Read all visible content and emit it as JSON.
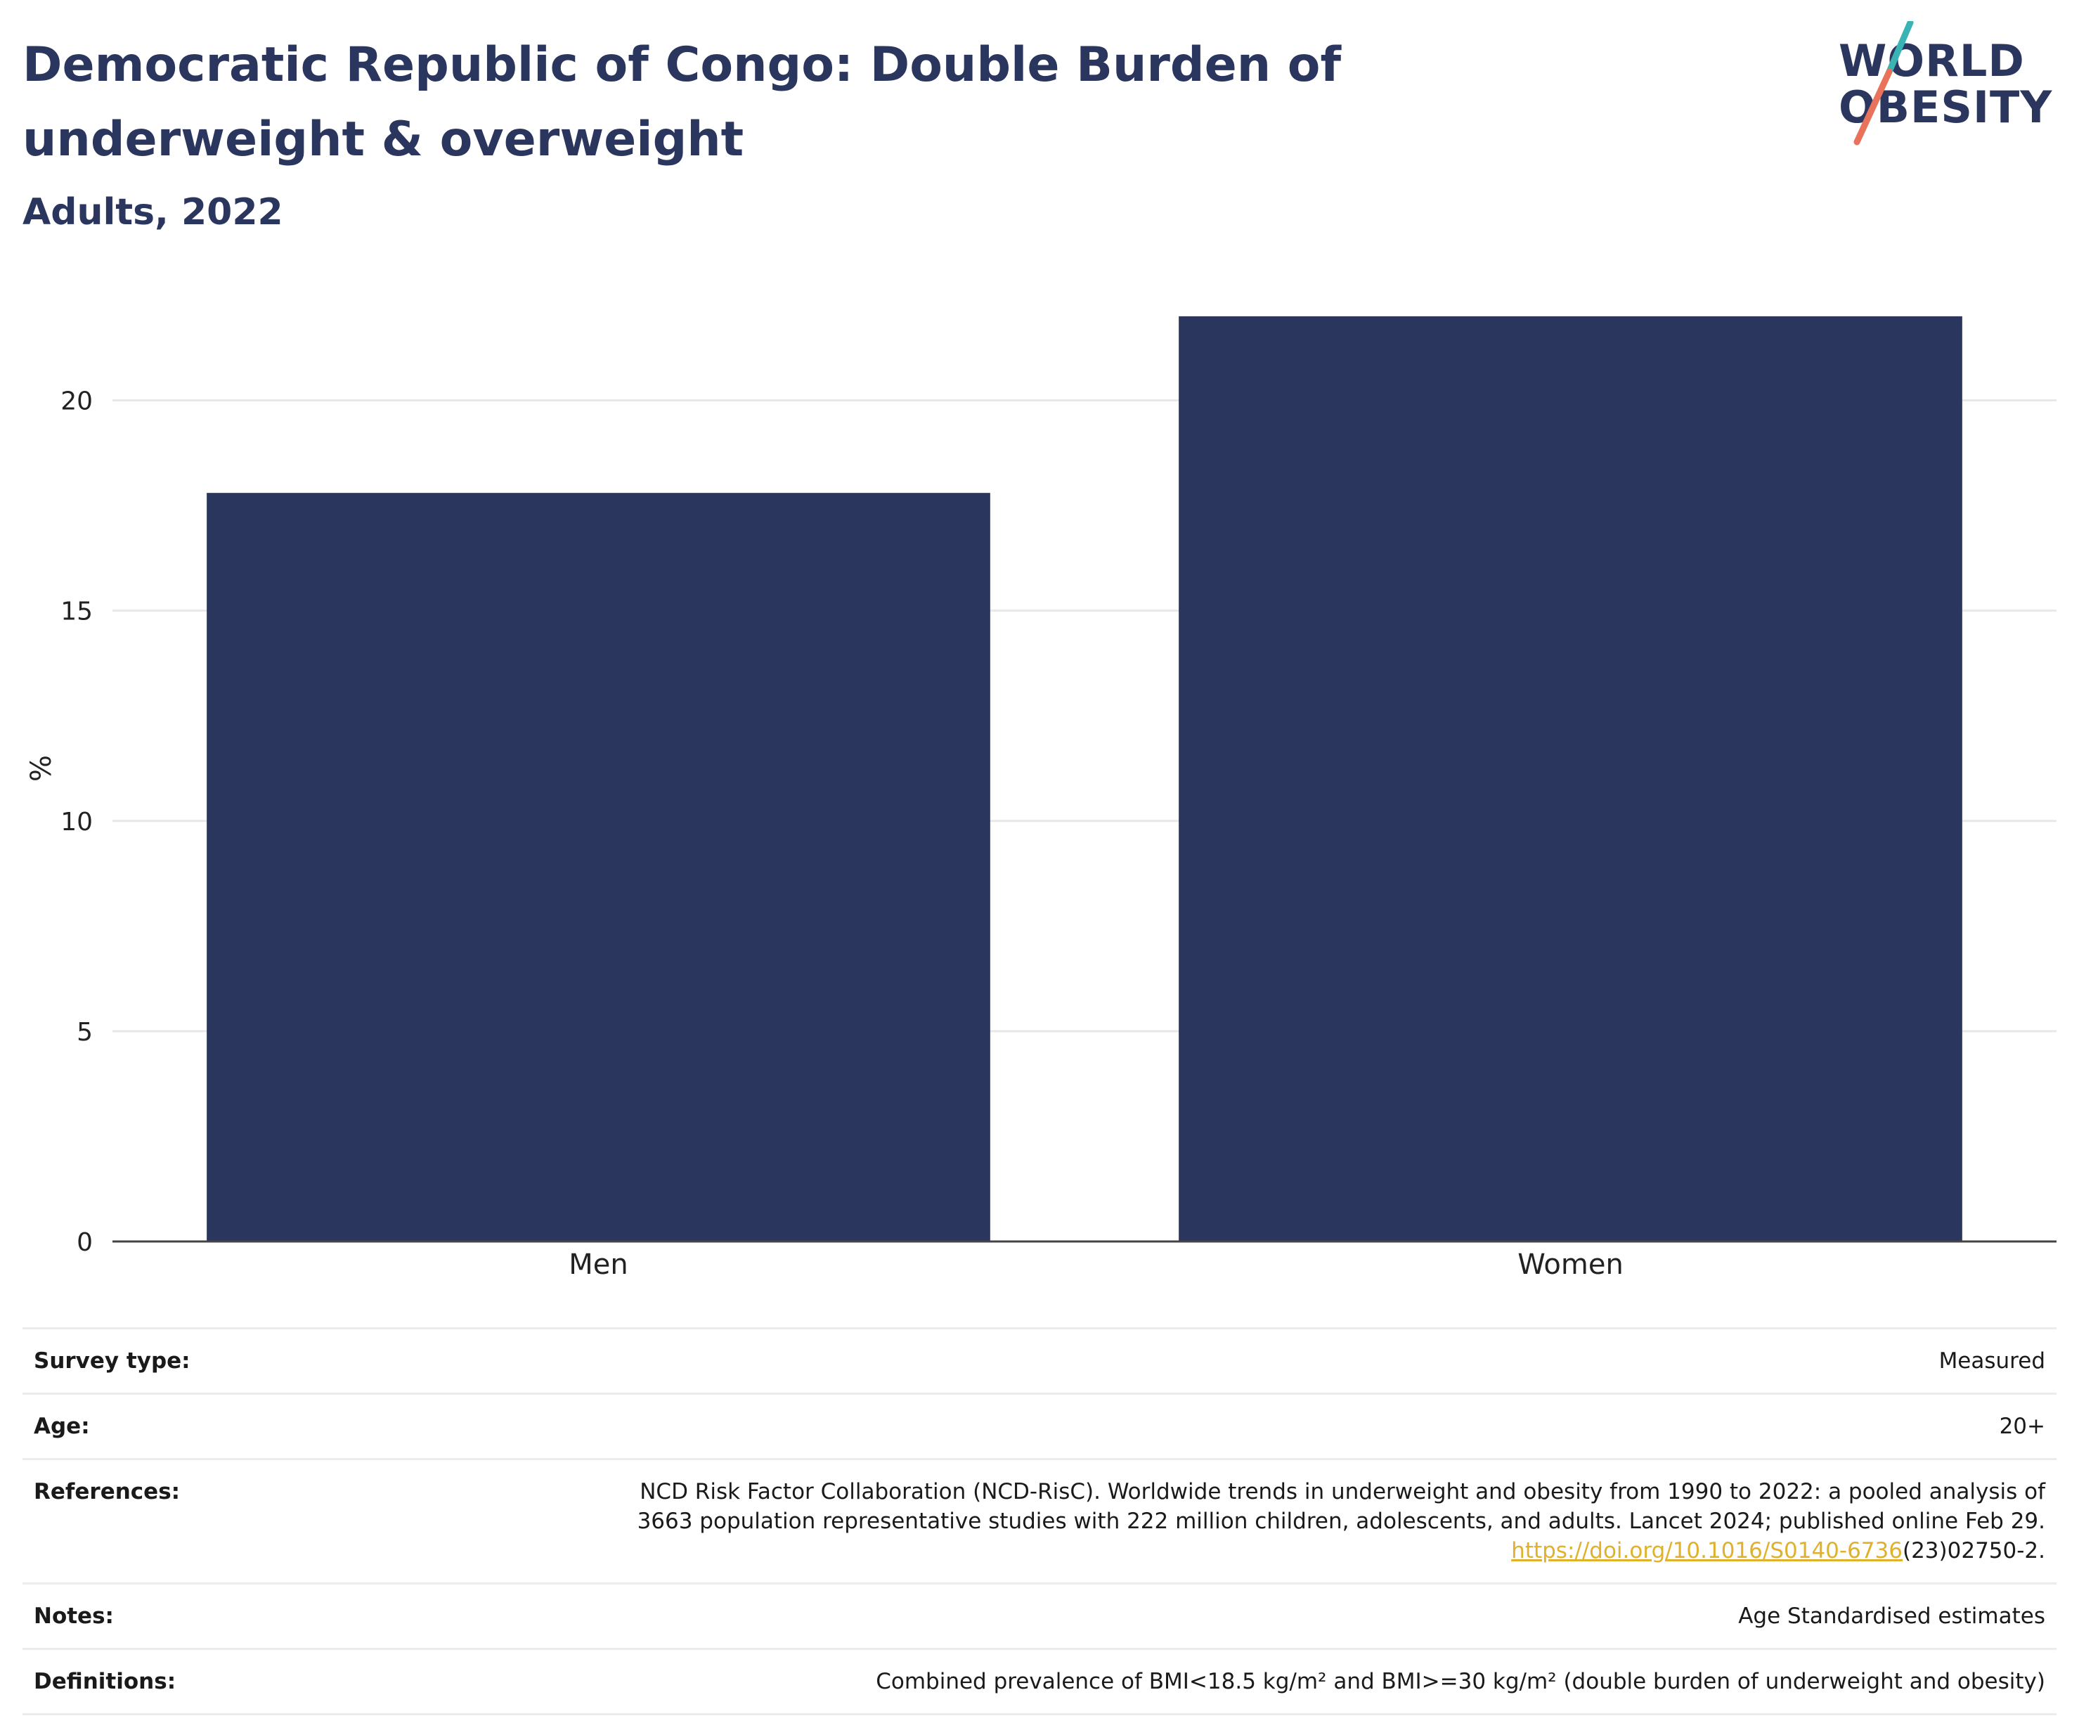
{
  "header": {
    "title": "Democratic Republic of Congo: Double Burden of underweight & overweight",
    "subtitle": "Adults, 2022"
  },
  "logo": {
    "line1": "WORLD",
    "line2": "OBESITY",
    "slash_top_color": "#3ab3b5",
    "slash_bottom_color": "#e8735a"
  },
  "chart_data": {
    "type": "bar",
    "categories": [
      "Men",
      "Women"
    ],
    "values": [
      17.8,
      22.0
    ],
    "ylabel": "%",
    "xlabel": "",
    "ylim": [
      0,
      22.5
    ],
    "yticks": [
      0,
      5,
      10,
      15,
      20
    ],
    "grid": true,
    "bar_color": "#2b365f"
  },
  "info": {
    "survey_type": {
      "label": "Survey type:",
      "value": "Measured"
    },
    "age": {
      "label": "Age:",
      "value": "20+"
    },
    "references": {
      "label": "References:",
      "line1": "NCD Risk Factor Collaboration (NCD-RisC). Worldwide trends in underweight and obesity from 1990 to 2022: a pooled analysis of",
      "line2": "3663 population representative studies with 222 million children, adolescents, and adults. Lancet 2024; published online Feb 29.",
      "link_text": "https://doi.org/10.1016/S0140-6736",
      "link_suffix": "(23)02750-2."
    },
    "notes": {
      "label": "Notes:",
      "value": "Age Standardised estimates"
    },
    "definitions": {
      "label": "Definitions:",
      "value": "Combined prevalence of BMI<18.5 kg/m² and BMI>=30 kg/m² (double burden of underweight and obesity)"
    }
  }
}
